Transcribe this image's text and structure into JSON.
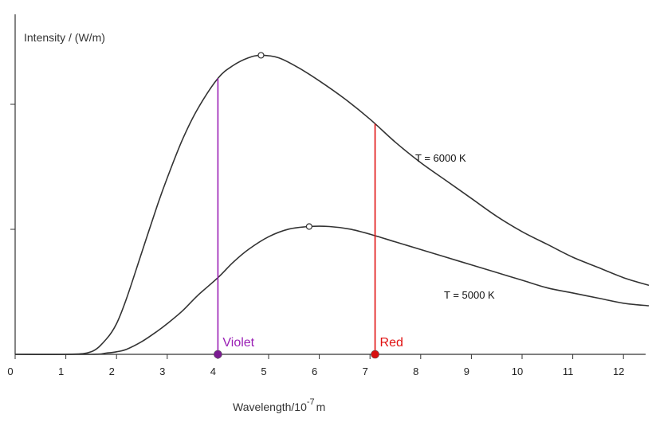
{
  "chart_data": {
    "type": "line",
    "title": "",
    "ylabel": "Intensity / (W/m)",
    "xlabel": {
      "base": "Wavelength/10",
      "exponent": "-7",
      "unit": "m"
    },
    "xlim": [
      0,
      12.5
    ],
    "x_ticks": [
      "0",
      "1",
      "2",
      "3",
      "4",
      "5",
      "6",
      "7",
      "8",
      "9",
      "10",
      "11",
      "12"
    ],
    "y_ticks_count": 2,
    "grid": false,
    "series": [
      {
        "name": "T = 6000 K",
        "color": "#333333",
        "x": [
          0,
          1.0,
          1.5,
          1.8,
          2.0,
          2.2,
          2.5,
          2.8,
          3.0,
          3.3,
          3.6,
          4.0,
          4.3,
          4.6,
          4.85,
          5.2,
          5.6,
          6.0,
          6.5,
          7.0,
          7.5,
          8.0,
          8.5,
          9.0,
          9.5,
          10.0,
          10.5,
          11.0,
          11.5,
          12.0,
          12.5
        ],
        "y": [
          0,
          0,
          1,
          6,
          12,
          22,
          40,
          58,
          69,
          84,
          96,
          108,
          113,
          116,
          117,
          116,
          112,
          107,
          100,
          92,
          83,
          75,
          68,
          61,
          54,
          48,
          43,
          38,
          34,
          30,
          27
        ]
      },
      {
        "name": "T = 5000 K",
        "color": "#333333",
        "x": [
          0,
          1.5,
          1.8,
          2.0,
          2.2,
          2.5,
          2.8,
          3.0,
          3.3,
          3.6,
          4.0,
          4.3,
          4.6,
          5.0,
          5.4,
          5.8,
          6.2,
          6.6,
          7.0,
          7.5,
          8.0,
          8.5,
          9.0,
          9.5,
          10.0,
          10.5,
          11.0,
          11.5,
          12.0,
          12.5
        ],
        "y": [
          0,
          0,
          0.5,
          1,
          2,
          5,
          9,
          12,
          17,
          23,
          30,
          36,
          41,
          46,
          49,
          50,
          50,
          49,
          47,
          44,
          41,
          38,
          35,
          32,
          29,
          26,
          24,
          22,
          20,
          19
        ]
      }
    ],
    "peaks": [
      {
        "series": "T = 6000 K",
        "x": 4.85,
        "y": 117
      },
      {
        "series": "T = 5000 K",
        "x": 5.8,
        "y": 50
      }
    ],
    "markers": [
      {
        "label": "Violet",
        "x": 4.0,
        "color": "#9a1fb5",
        "dot_color": "#7b1a92",
        "top_series": "T = 6000 K"
      },
      {
        "label": "Red",
        "x": 7.1,
        "color": "#e01010",
        "dot_color": "#d80f0f",
        "top_series": "T = 6000 K"
      }
    ]
  }
}
